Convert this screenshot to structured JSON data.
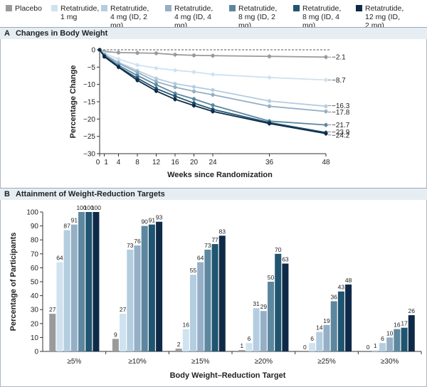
{
  "legend": [
    {
      "label": "Placebo",
      "color": "#9a9a9a"
    },
    {
      "label": "Retatrutide,\n1 mg",
      "color": "#cfe2f0"
    },
    {
      "label": "Retatrutide,\n4 mg (ID, 2 mg)",
      "color": "#b4cde0"
    },
    {
      "label": "Retatrutide,\n4 mg (ID, 4 mg)",
      "color": "#94afc6"
    },
    {
      "label": "Retatrutide,\n8 mg (ID, 2 mg)",
      "color": "#5c879f"
    },
    {
      "label": "Retatrutide,\n8 mg (ID, 4 mg)",
      "color": "#1f5570"
    },
    {
      "label": "Retatrutide,\n12 mg (ID, 2 mg)",
      "color": "#0e2a48"
    }
  ],
  "panel_a": {
    "letter": "A",
    "title": "Changes in Body Weight"
  },
  "panel_b": {
    "letter": "B",
    "title": "Attainment of Weight-Reduction Targets"
  },
  "chart_data": [
    {
      "type": "line",
      "title": "Changes in Body Weight",
      "xlabel": "Weeks since Randomization",
      "ylabel": "Percentage Change",
      "x": [
        0,
        1,
        4,
        8,
        12,
        16,
        20,
        24,
        36,
        48
      ],
      "x_ticks": [
        "0",
        "1",
        "4",
        "8",
        "12",
        "16",
        "20",
        "24",
        "36",
        "48"
      ],
      "ylim": [
        -30,
        0
      ],
      "y_ticks": [
        0,
        -5,
        -10,
        -15,
        -20,
        -25,
        -30
      ],
      "grid": false,
      "series": [
        {
          "values": [
            0,
            -0.5,
            -0.8,
            -0.9,
            -1.0,
            -1.4,
            -1.6,
            -1.7,
            -1.9,
            -2.1
          ],
          "end_label": "−2.1",
          "color": "#9a9a9a"
        },
        {
          "values": [
            0,
            -1.0,
            -2.7,
            -4.4,
            -5.3,
            -5.9,
            -6.4,
            -7.1,
            -8.0,
            -8.7
          ],
          "end_label": "−8.7",
          "color": "#cfe2f0"
        },
        {
          "values": [
            0,
            -1.3,
            -3.6,
            -6.0,
            -8.3,
            -9.8,
            -10.7,
            -11.6,
            -14.8,
            -16.3
          ],
          "end_label": "−16.3",
          "color": "#b4cde0"
        },
        {
          "values": [
            0,
            -1.4,
            -3.9,
            -6.5,
            -9.2,
            -10.8,
            -12.0,
            -13.0,
            -16.3,
            -17.8
          ],
          "end_label": "−17.8",
          "color": "#94afc6"
        },
        {
          "values": [
            0,
            -1.6,
            -4.5,
            -7.4,
            -10.1,
            -12.6,
            -14.2,
            -16.0,
            -20.6,
            -21.7
          ],
          "end_label": "−21.7",
          "color": "#5c879f"
        },
        {
          "values": [
            0,
            -1.8,
            -4.9,
            -8.2,
            -11.2,
            -13.4,
            -15.4,
            -17.2,
            -21.0,
            -23.9
          ],
          "end_label": "−23.9",
          "color": "#1f5570"
        },
        {
          "values": [
            0,
            -2.0,
            -5.0,
            -8.8,
            -11.9,
            -14.3,
            -16.1,
            -17.8,
            -21.3,
            -24.2
          ],
          "end_label": "−24.2",
          "color": "#0e2a48"
        }
      ]
    },
    {
      "type": "bar",
      "title": "Attainment of Weight-Reduction Targets",
      "xlabel": "Body Weight–Reduction Target",
      "ylabel": "Percentage of Participants",
      "ylim": [
        0,
        100
      ],
      "y_ticks": [
        0,
        10,
        20,
        30,
        40,
        50,
        60,
        70,
        80,
        90,
        100
      ],
      "categories": [
        "≥5%",
        "≥10%",
        "≥15%",
        "≥20%",
        "≥25%",
        "≥30%"
      ],
      "series": [
        {
          "values": [
            27,
            9,
            2,
            1,
            0,
            0
          ],
          "color": "#9a9a9a"
        },
        {
          "values": [
            64,
            27,
            16,
            6,
            6,
            1
          ],
          "color": "#cfe2f0"
        },
        {
          "values": [
            87,
            73,
            55,
            31,
            14,
            6
          ],
          "color": "#b4cde0"
        },
        {
          "values": [
            91,
            76,
            64,
            29,
            19,
            10
          ],
          "color": "#94afc6"
        },
        {
          "values": [
            100,
            90,
            73,
            50,
            36,
            16
          ],
          "color": "#5c879f"
        },
        {
          "values": [
            100,
            91,
            77,
            70,
            43,
            17
          ],
          "color": "#1f5570"
        },
        {
          "values": [
            100,
            93,
            83,
            63,
            48,
            26
          ],
          "color": "#0e2a48"
        }
      ]
    }
  ]
}
